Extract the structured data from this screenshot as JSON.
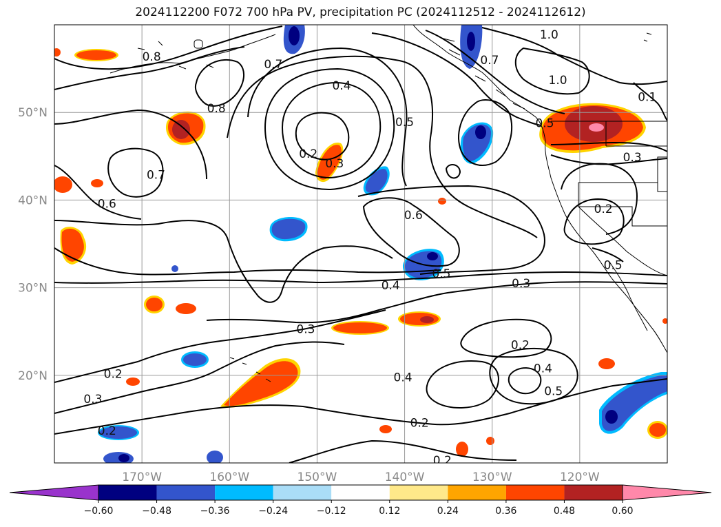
{
  "figure": {
    "title": "2024112200 F072 700 hPa PV, precipitation PC (2024112512 - 2024112612)"
  },
  "map": {
    "projection": "PlateCarree",
    "lon_range": [
      -180,
      -110
    ],
    "lat_range": [
      10,
      60
    ],
    "grid": true,
    "lon_ticks": [
      {
        "value": -170,
        "label": "170°W"
      },
      {
        "value": -160,
        "label": "160°W"
      },
      {
        "value": -150,
        "label": "150°W"
      },
      {
        "value": -140,
        "label": "140°W"
      },
      {
        "value": -130,
        "label": "130°W"
      },
      {
        "value": -120,
        "label": "120°W"
      }
    ],
    "lat_ticks": [
      {
        "value": 20,
        "label": "20°N"
      },
      {
        "value": 30,
        "label": "30°N"
      },
      {
        "value": 40,
        "label": "40°N"
      },
      {
        "value": 50,
        "label": "50°N"
      }
    ],
    "contour_labels": [
      {
        "text": "1.0",
        "lon": -123.5,
        "lat": 58.9
      },
      {
        "text": "0.8",
        "lon": -168.9,
        "lat": 56.4
      },
      {
        "text": "0.7",
        "lon": -155.0,
        "lat": 55.5
      },
      {
        "text": "0.7",
        "lon": -130.3,
        "lat": 56.0
      },
      {
        "text": "1.0",
        "lon": -122.5,
        "lat": 53.7
      },
      {
        "text": "0.4",
        "lon": -147.2,
        "lat": 53.1
      },
      {
        "text": "0.1",
        "lon": -112.3,
        "lat": 51.8
      },
      {
        "text": "0.8",
        "lon": -161.5,
        "lat": 50.5
      },
      {
        "text": "0.5",
        "lon": -140.0,
        "lat": 48.9
      },
      {
        "text": "0.5",
        "lon": -124.0,
        "lat": 48.8
      },
      {
        "text": "0.2",
        "lon": -151.0,
        "lat": 45.3
      },
      {
        "text": "0.3",
        "lon": -148.0,
        "lat": 44.2
      },
      {
        "text": "0.3",
        "lon": -114.0,
        "lat": 44.9
      },
      {
        "text": "0.7",
        "lon": -168.4,
        "lat": 42.9
      },
      {
        "text": "0.6",
        "lon": -174.0,
        "lat": 39.6
      },
      {
        "text": "0.2",
        "lon": -117.3,
        "lat": 39.0
      },
      {
        "text": "0.6",
        "lon": -139.0,
        "lat": 38.3
      },
      {
        "text": "0.5",
        "lon": -116.2,
        "lat": 32.6
      },
      {
        "text": "0.5",
        "lon": -135.8,
        "lat": 31.6
      },
      {
        "text": "0.4",
        "lon": -141.6,
        "lat": 30.3
      },
      {
        "text": "0.3",
        "lon": -126.7,
        "lat": 30.5
      },
      {
        "text": "0.3",
        "lon": -151.3,
        "lat": 25.3
      },
      {
        "text": "0.2",
        "lon": -126.8,
        "lat": 23.5
      },
      {
        "text": "0.4",
        "lon": -124.2,
        "lat": 20.8
      },
      {
        "text": "0.2",
        "lon": -173.3,
        "lat": 20.2
      },
      {
        "text": "0.4",
        "lon": -140.2,
        "lat": 19.8
      },
      {
        "text": "0.5",
        "lon": -123.0,
        "lat": 18.2
      },
      {
        "text": "0.3",
        "lon": -175.6,
        "lat": 17.3
      },
      {
        "text": "0.2",
        "lon": -138.3,
        "lat": 14.6
      },
      {
        "text": "0.2",
        "lon": -174.0,
        "lat": 13.7
      },
      {
        "text": "0.2",
        "lon": -135.7,
        "lat": 10.3
      }
    ]
  },
  "colorbar": {
    "colors": [
      "#9933cc",
      "#000080",
      "#3355cc",
      "#00bbff",
      "#aaddf7",
      "#ffffff",
      "#ffe98a",
      "#ffa500",
      "#ff4500",
      "#b22222",
      "#ff88aa"
    ],
    "boundaries": [
      -0.6,
      -0.48,
      -0.36,
      -0.24,
      -0.12,
      0.12,
      0.24,
      0.36,
      0.48,
      0.6
    ],
    "tick_labels": [
      "−0.60",
      "−0.48",
      "−0.36",
      "−0.24",
      "−0.12",
      "0.12",
      "0.24",
      "0.36",
      "0.48",
      "0.60"
    ],
    "extend": "both"
  },
  "legend_colors": {
    "contour": "#000000",
    "grid": "#999999",
    "coast": "#000000"
  }
}
